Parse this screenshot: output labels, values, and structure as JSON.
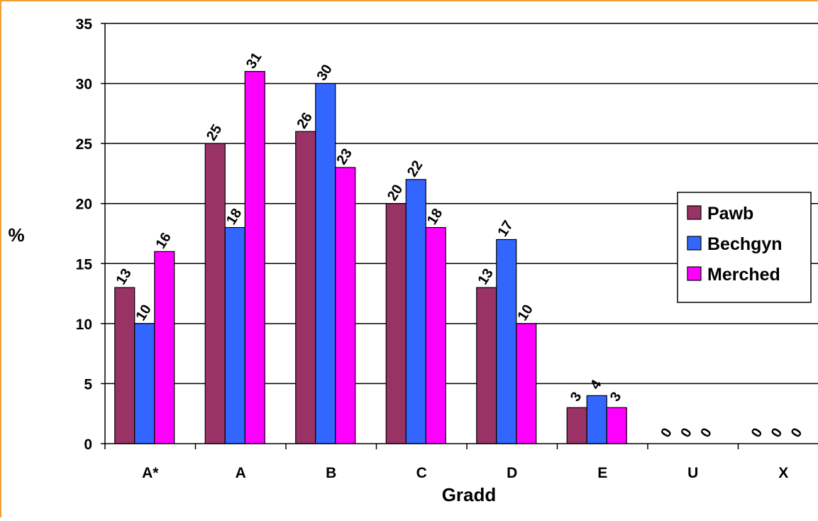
{
  "chart_data": {
    "type": "bar",
    "categories": [
      "A*",
      "A",
      "B",
      "C",
      "D",
      "E",
      "U",
      "X"
    ],
    "series": [
      {
        "name": "Pawb",
        "color": "#993366",
        "values": [
          13,
          25,
          26,
          20,
          13,
          3,
          0,
          0
        ]
      },
      {
        "name": "Bechgyn",
        "color": "#3366ff",
        "values": [
          10,
          18,
          30,
          22,
          17,
          4,
          0,
          0
        ]
      },
      {
        "name": "Merched",
        "color": "#ff00ff",
        "values": [
          16,
          31,
          23,
          18,
          10,
          3,
          0,
          0
        ]
      }
    ],
    "title": "",
    "xlabel": "Gradd",
    "ylabel": "%",
    "ylim": [
      0,
      35
    ],
    "yticks": [
      0,
      5,
      10,
      15,
      20,
      25,
      30,
      35
    ],
    "grid": "horizontal",
    "legend": "right",
    "data_labels": true,
    "frame_color": "#f0a030"
  }
}
